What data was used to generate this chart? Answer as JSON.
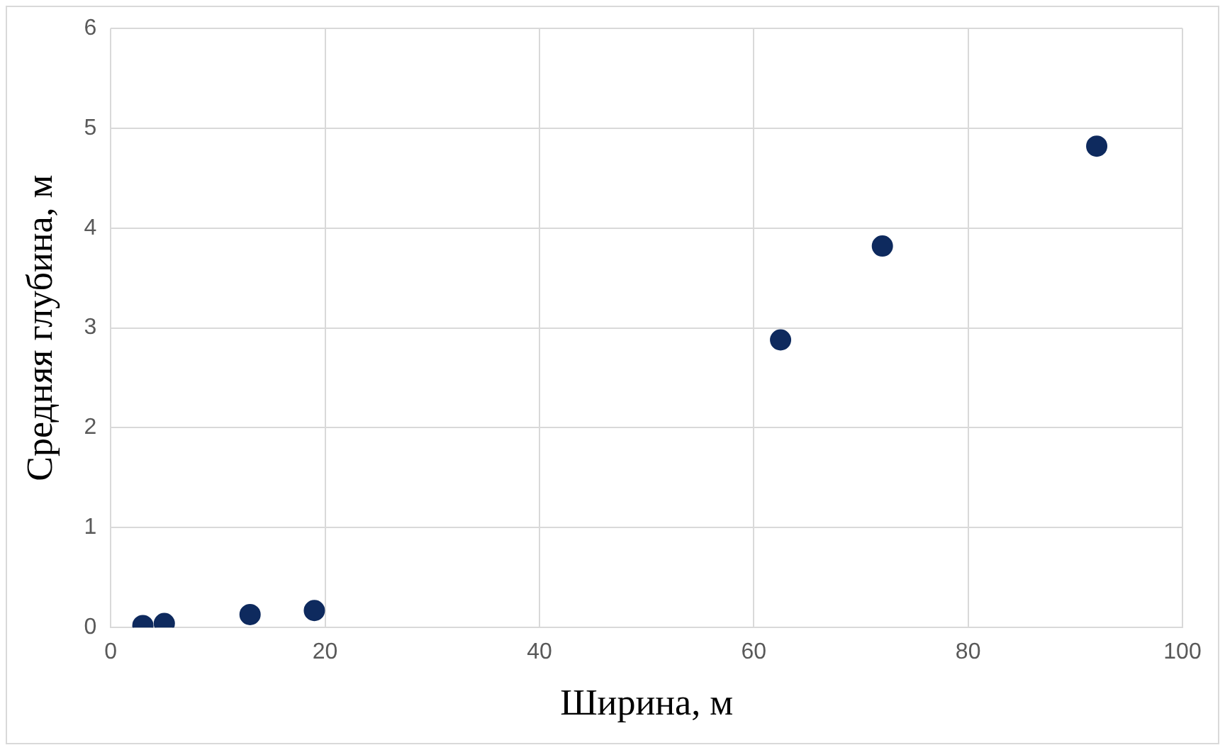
{
  "chart_data": {
    "type": "scatter",
    "xlabel": "Ширина, м",
    "ylabel": "Средняя глубина, м",
    "x": [
      3,
      5,
      13,
      19,
      62.5,
      72,
      92
    ],
    "values": [
      0.02,
      0.04,
      0.13,
      0.17,
      2.88,
      3.82,
      4.82
    ],
    "color": "#0e2a5e",
    "marker": "circle",
    "xlim": [
      0,
      100
    ],
    "xticks": [
      0,
      20,
      40,
      60,
      80,
      100
    ],
    "ylim": [
      0,
      6
    ],
    "yticks": [
      0,
      1,
      2,
      3,
      4,
      5,
      6
    ],
    "grid": true,
    "legend": false
  }
}
